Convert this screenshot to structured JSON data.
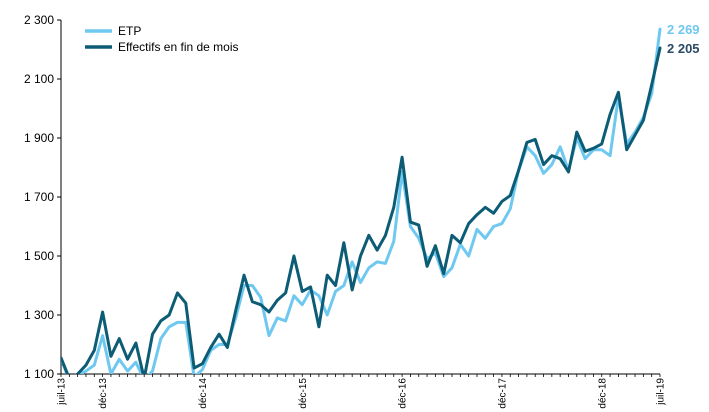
{
  "chart_data": {
    "type": "line",
    "title": "",
    "xlabel": "",
    "ylabel": "",
    "ylim": [
      1100,
      2300
    ],
    "yticks": [
      1100,
      1300,
      1500,
      1700,
      1900,
      2100,
      2300
    ],
    "ytick_labels": [
      "1 100",
      "1 300",
      "1 500",
      "1 700",
      "1 900",
      "2 100",
      "2 300"
    ],
    "xticks": [
      {
        "index": 0,
        "label": "juil-13"
      },
      {
        "index": 5,
        "label": "déc-13"
      },
      {
        "index": 17,
        "label": "déc-14"
      },
      {
        "index": 29,
        "label": "déc-15"
      },
      {
        "index": 41,
        "label": "déc-16"
      },
      {
        "index": 53,
        "label": "déc-17"
      },
      {
        "index": 65,
        "label": "déc-18"
      },
      {
        "index": 72,
        "label": "juil-19"
      }
    ],
    "grid": false,
    "legend_position": "top-left",
    "series": [
      {
        "name": "ETP",
        "color": "#6fc8f0",
        "end_label": "2 269",
        "values": [
          1150,
          1080,
          1095,
          1110,
          1130,
          1230,
          1100,
          1150,
          1110,
          1140,
          1080,
          1110,
          1220,
          1260,
          1275,
          1275,
          1090,
          1115,
          1180,
          1200,
          1200,
          1290,
          1400,
          1400,
          1360,
          1230,
          1290,
          1280,
          1365,
          1335,
          1385,
          1365,
          1300,
          1380,
          1400,
          1480,
          1410,
          1460,
          1480,
          1475,
          1550,
          1785,
          1600,
          1560,
          1490,
          1510,
          1430,
          1460,
          1540,
          1500,
          1590,
          1560,
          1600,
          1610,
          1660,
          1790,
          1870,
          1840,
          1780,
          1810,
          1870,
          1790,
          1900,
          1830,
          1860,
          1860,
          1840,
          2040,
          1880,
          1920,
          1970,
          2050,
          2269
        ]
      },
      {
        "name": "Effectifs en fin de mois",
        "color": "#0d5c75",
        "end_label": "2 205",
        "values": [
          1155,
          1085,
          1100,
          1130,
          1180,
          1310,
          1160,
          1220,
          1150,
          1205,
          1085,
          1235,
          1280,
          1300,
          1375,
          1340,
          1120,
          1135,
          1190,
          1235,
          1190,
          1315,
          1435,
          1345,
          1335,
          1310,
          1350,
          1375,
          1500,
          1380,
          1395,
          1260,
          1435,
          1400,
          1545,
          1385,
          1500,
          1570,
          1520,
          1570,
          1665,
          1835,
          1615,
          1605,
          1465,
          1535,
          1440,
          1570,
          1545,
          1610,
          1640,
          1665,
          1645,
          1685,
          1705,
          1790,
          1885,
          1895,
          1810,
          1840,
          1830,
          1785,
          1920,
          1855,
          1865,
          1880,
          1980,
          2055,
          1860,
          1910,
          1960,
          2080,
          2205
        ]
      }
    ]
  }
}
